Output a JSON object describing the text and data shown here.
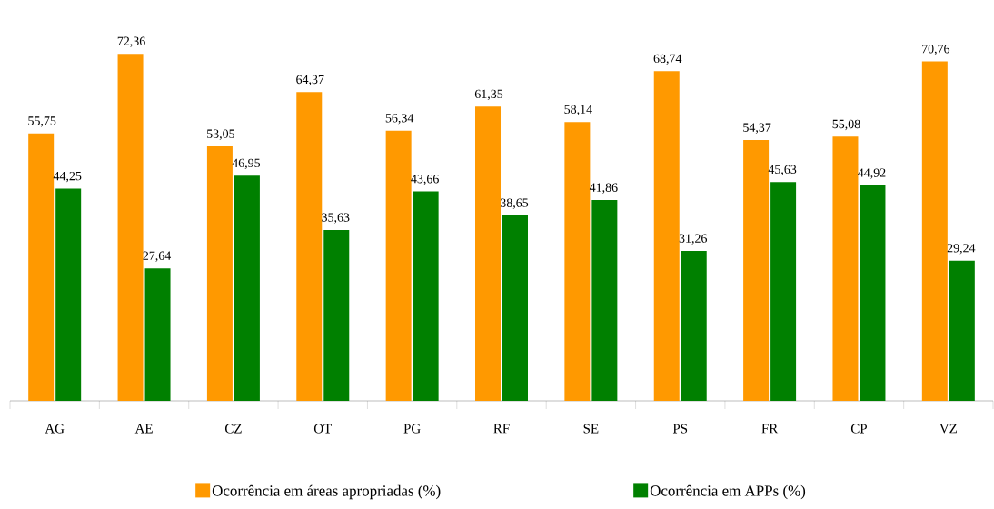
{
  "chart_data": {
    "type": "bar",
    "categories": [
      "AG",
      "AE",
      "CZ",
      "OT",
      "PG",
      "RF",
      "SE",
      "PS",
      "FR",
      "CP",
      "VZ"
    ],
    "series": [
      {
        "name": "Ocorrência em áreas apropriadas (%)",
        "color": "#ff9900",
        "values": [
          55.75,
          72.36,
          53.05,
          64.37,
          56.34,
          61.35,
          58.14,
          68.74,
          54.37,
          55.08,
          70.76
        ],
        "value_labels": [
          "55,75",
          "72,36",
          "53,05",
          "64,37",
          "56,34",
          "61,35",
          "58,14",
          "68,74",
          "54,37",
          "55,08",
          "70,76"
        ]
      },
      {
        "name": "Ocorrência em APPs (%)",
        "color": "#008000",
        "values": [
          44.25,
          27.64,
          46.95,
          35.63,
          43.66,
          38.65,
          41.86,
          31.26,
          45.63,
          44.92,
          29.24
        ],
        "value_labels": [
          "44,25",
          "27,64",
          "46,95",
          "35,63",
          "43,66",
          "38,65",
          "41,86",
          "31,26",
          "45,63",
          "44,92",
          "29,24"
        ]
      }
    ],
    "legend": "bottom"
  }
}
